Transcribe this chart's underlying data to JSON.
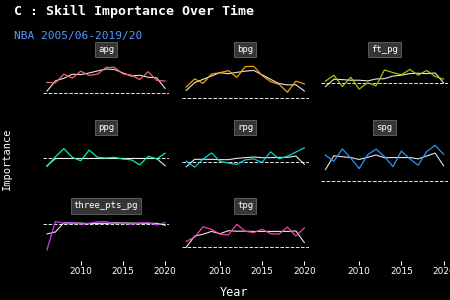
{
  "title": "C : Skill Importance Over Time",
  "subtitle": "NBA 2005/06-2019/20",
  "xlabel": "Year",
  "ylabel": "Importance",
  "background_color": "#000000",
  "panel_title_bg": "#333333",
  "text_color": "#ffffff",
  "subtitle_color": "#5599ff",
  "years": [
    2006,
    2007,
    2008,
    2009,
    2010,
    2011,
    2012,
    2013,
    2014,
    2015,
    2016,
    2017,
    2018,
    2019,
    2020
  ],
  "skill_colors": {
    "apg": "#ff6666",
    "bpg": "#ffaa00",
    "ft_pg": "#aacc00",
    "ppg": "#00ffaa",
    "rpg": "#00dddd",
    "spg": "#3399ff",
    "three_pts_pg": "#cc44ff",
    "tpg": "#ff44aa"
  },
  "layout": [
    [
      "apg",
      "bpg",
      "ft_pg"
    ],
    [
      "ppg",
      "rpg",
      "spg"
    ],
    [
      "three_pts_pg",
      "tpg",
      null
    ]
  ],
  "data": {
    "apg": [
      0.03,
      0.038,
      0.05,
      0.042,
      0.058,
      0.048,
      0.05,
      0.068,
      0.057,
      0.048,
      0.051,
      0.042,
      0.052,
      0.041,
      0.04
    ],
    "bpg": [
      0.05,
      0.06,
      0.052,
      0.072,
      0.082,
      0.074,
      0.065,
      0.091,
      0.082,
      0.07,
      0.062,
      0.052,
      0.042,
      0.053,
      0.053
    ],
    "ft_pg": [
      0.025,
      0.024,
      0.023,
      0.024,
      0.022,
      0.023,
      0.022,
      0.028,
      0.024,
      0.03,
      0.031,
      0.029,
      0.031,
      0.03,
      0.031
    ],
    "ppg": [
      0.02,
      0.02,
      0.02,
      0.02,
      0.02,
      0.02,
      0.02,
      0.02,
      0.02,
      0.02,
      0.02,
      0.02,
      0.02,
      0.02,
      0.02
    ],
    "rpg": [
      0.022,
      0.022,
      0.023,
      0.022,
      0.022,
      0.022,
      0.022,
      0.026,
      0.024,
      0.024,
      0.024,
      0.024,
      0.025,
      0.024,
      0.028
    ],
    "spg": [
      0.065,
      0.052,
      0.072,
      0.06,
      0.048,
      0.062,
      0.071,
      0.06,
      0.048,
      0.072,
      0.06,
      0.048,
      0.065,
      0.075,
      0.063
    ],
    "three_pts_pg": [
      -0.08,
      0.025,
      0.022,
      0.024,
      0.021,
      0.022,
      0.018,
      0.024,
      0.022,
      0.024,
      0.022,
      0.021,
      0.022,
      0.021,
      0.022
    ],
    "tpg": [
      0.03,
      0.028,
      0.048,
      0.038,
      0.04,
      0.038,
      0.051,
      0.038,
      0.038,
      0.05,
      0.038,
      0.038,
      0.05,
      0.038,
      0.04
    ]
  },
  "baseline": 0.02
}
